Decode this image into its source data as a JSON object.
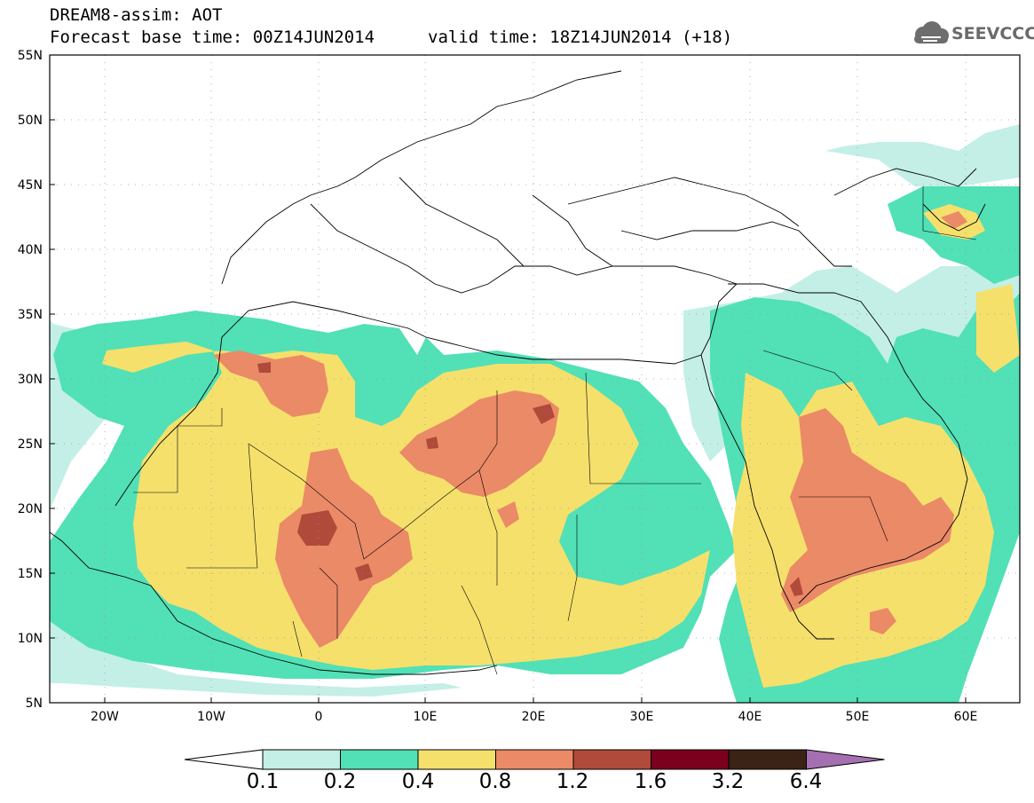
{
  "header": {
    "title_line1": "DREAM8-assim: AOT",
    "title_line2": "Forecast base time: 00Z14JUN2014",
    "valid_time": "valid time: 18Z14JUN2014 (+18)",
    "logo_text": "SEEVCCC",
    "logo_icon": "cloud-logo-icon"
  },
  "map": {
    "lat_labels": [
      "55N",
      "50N",
      "45N",
      "40N",
      "35N",
      "30N",
      "25N",
      "20N",
      "15N",
      "10N",
      "5N"
    ],
    "lon_labels": [
      "20W",
      "10W",
      "0",
      "10E",
      "20E",
      "30E",
      "40E",
      "50E",
      "60E"
    ],
    "lat_range": [
      5,
      55
    ],
    "lon_range": [
      -25,
      65
    ],
    "grid": "dotted"
  },
  "colorbar": {
    "labels": [
      "0.1",
      "0.2",
      "0.4",
      "0.8",
      "1.2",
      "1.6",
      "3.2",
      "6.4"
    ],
    "colors": [
      "#ffffff",
      "#c3efe6",
      "#52e0b6",
      "#f5e06c",
      "#eb8a67",
      "#b04a3a",
      "#7a001e",
      "#3a2314",
      "#a56fb1"
    ]
  }
}
